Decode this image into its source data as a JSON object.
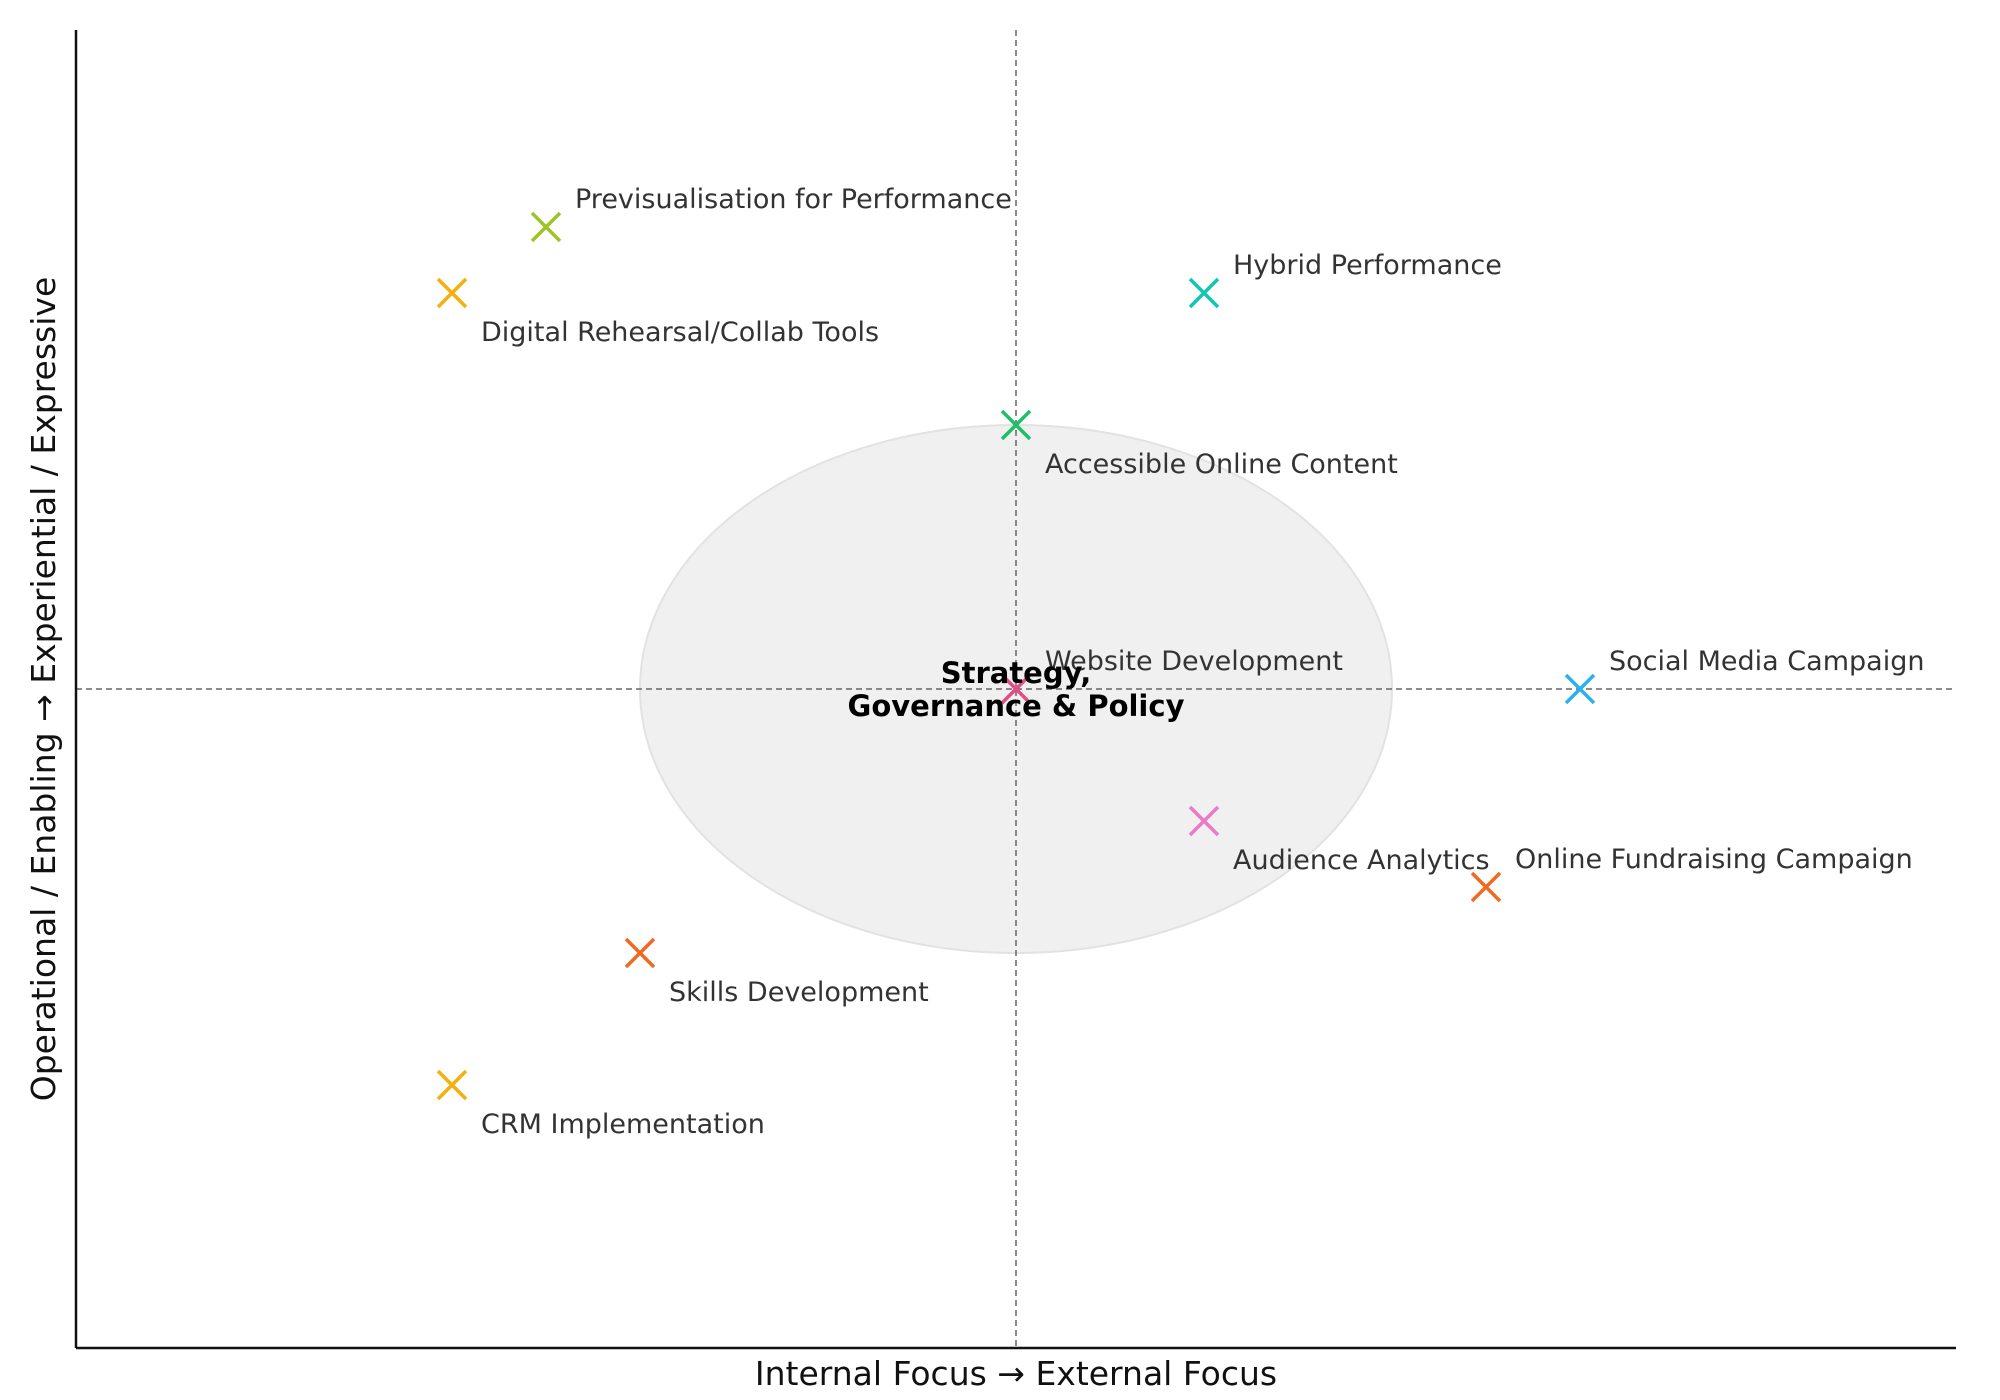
{
  "chart_data": {
    "type": "scatter",
    "xlabel": "Internal Focus → External Focus",
    "ylabel": "Operational / Enabling → Experiential / Expressive",
    "xlim": [
      -5,
      5
    ],
    "ylim": [
      -5,
      5
    ],
    "grid": false,
    "reference_lines": {
      "x": 0,
      "y": 0
    },
    "center_region": {
      "label_line1": "Strategy,",
      "label_line2": "Governance & Policy",
      "cx": 0,
      "cy": 0,
      "rx": 2,
      "ry": 2,
      "color": "#f0f0f0"
    },
    "points": [
      {
        "label": "Previsualisation for Performance",
        "x": -2.5,
        "y": 3.5,
        "color": "#9ec42a",
        "label_pos": "above"
      },
      {
        "label": "Digital Rehearsal/Collab Tools",
        "x": -3,
        "y": 3,
        "color": "#f5b00d",
        "label_pos": "below"
      },
      {
        "label": "Hybrid Performance",
        "x": 1,
        "y": 3,
        "color": "#12c6b4",
        "label_pos": "above"
      },
      {
        "label": "Accessible Online Content",
        "x": 0,
        "y": 2,
        "color": "#1fbf68",
        "label_pos": "below"
      },
      {
        "label": "Website Development",
        "x": 0,
        "y": 0,
        "color": "#e44d86",
        "label_pos": "above"
      },
      {
        "label": "Social Media Campaign",
        "x": 3,
        "y": 0,
        "color": "#2fb0ee",
        "label_pos": "above"
      },
      {
        "label": "Audience Analytics",
        "x": 1,
        "y": -1,
        "color": "#e97ac6",
        "label_pos": "below"
      },
      {
        "label": "Online Fundraising Campaign",
        "x": 2.5,
        "y": -1.5,
        "color": "#f06a22",
        "label_pos": "above"
      },
      {
        "label": "Skills Development",
        "x": -2,
        "y": -2,
        "color": "#f06a22",
        "label_pos": "below"
      },
      {
        "label": "CRM Implementation",
        "x": -3,
        "y": -3,
        "color": "#f5b00d",
        "label_pos": "below"
      }
    ]
  }
}
